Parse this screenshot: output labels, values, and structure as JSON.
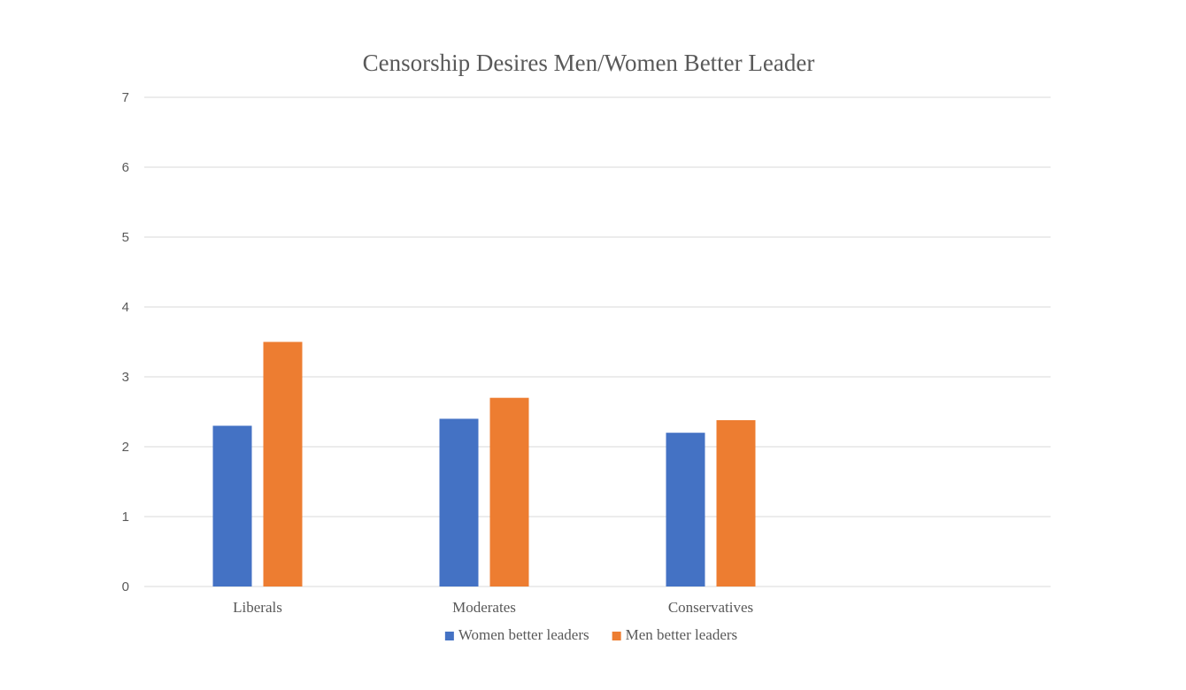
{
  "chart_data": {
    "type": "bar",
    "title": "Censorship Desires Men/Women Better Leader",
    "categories": [
      "Liberals",
      "Moderates",
      "Conservatives",
      ""
    ],
    "series": [
      {
        "name": "Women better leaders",
        "color": "#4472C4",
        "values": [
          2.3,
          2.4,
          2.2,
          null
        ]
      },
      {
        "name": "Men better leaders",
        "color": "#ED7D31",
        "values": [
          3.5,
          2.7,
          2.38,
          null
        ]
      }
    ],
    "yticks": [
      "0",
      "1",
      "2",
      "3",
      "4",
      "5",
      "6",
      "7"
    ],
    "ylim": [
      0,
      7
    ],
    "grid": true,
    "legend_position": "bottom"
  }
}
